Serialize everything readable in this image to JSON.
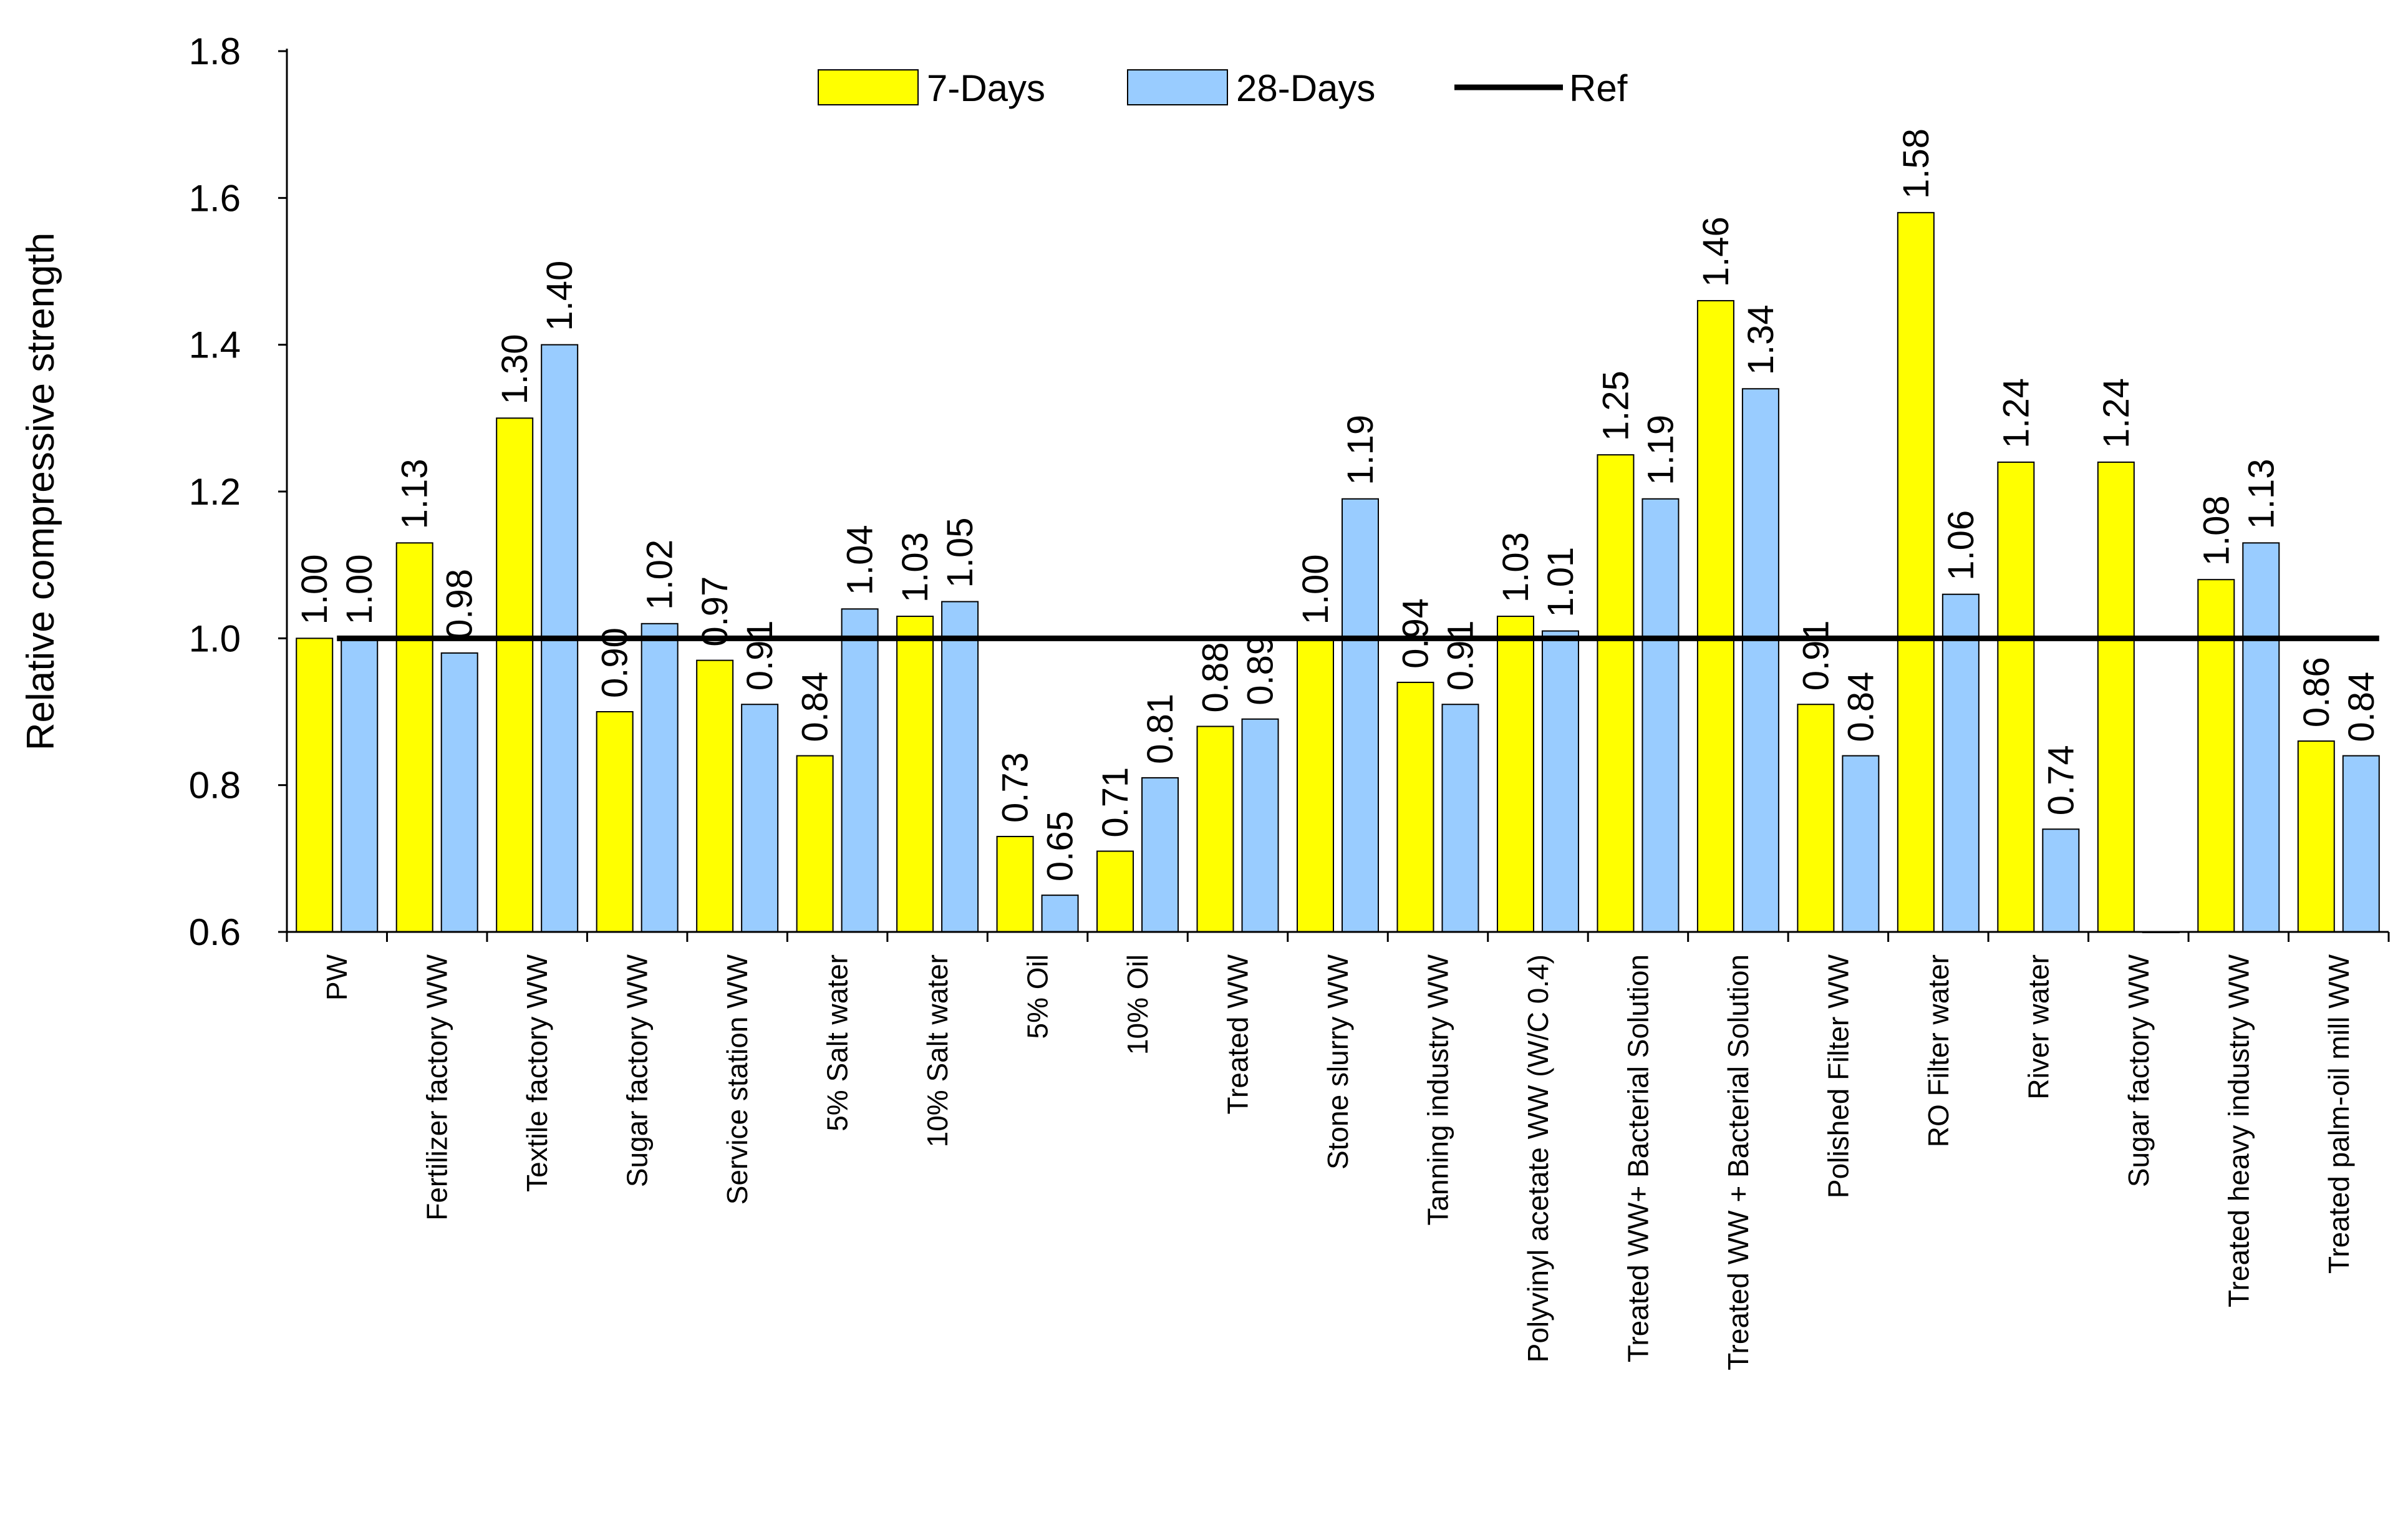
{
  "chart_data": {
    "type": "bar",
    "title": "",
    "xlabel": "",
    "ylabel": "Relative compressive strength",
    "ylim": [
      0.6,
      1.8
    ],
    "yticks": [
      "0.6",
      "0.8",
      "1.0",
      "1.2",
      "1.4",
      "1.6",
      "1.8"
    ],
    "grid": false,
    "legend_position": "top-center",
    "categories": [
      "PW",
      "Fertilizer factory WW",
      "Textile factory WW",
      "Sugar factory WW",
      "Service station WW",
      "5% Salt water",
      "10% Salt water",
      "5% Oil",
      "10% Oil",
      "Treated WW",
      "Stone slurry WW",
      "Tanning industry WW",
      "Polyvinyl acetate WW (W/C 0.4)",
      "Treated WW+ Bacterial Solution",
      "Treated WW + Bacterial Solution",
      "Polished Filter WW",
      "RO Filter water",
      "River water",
      "Sugar factory WW",
      "Treated heavy industry WW",
      "Treated palm-oil mill WW"
    ],
    "series": [
      {
        "name": "7-Days",
        "color": "#FFFF00",
        "values": [
          1.0,
          1.13,
          1.3,
          0.9,
          0.97,
          0.84,
          1.03,
          0.73,
          0.71,
          0.88,
          1.0,
          0.94,
          1.03,
          1.25,
          1.46,
          0.91,
          1.58,
          1.24,
          1.24,
          1.08,
          0.86
        ],
        "labels": [
          "1.00",
          "1.13",
          "1.30",
          "0.90",
          "0.97",
          "0.84",
          "1.03",
          "0.73",
          "0.71",
          "0.88",
          "1.00",
          "0.94",
          "1.03",
          "1.25",
          "1.46",
          "0.91",
          "1.58",
          "1.24",
          "1.24",
          "1.08",
          "0.86"
        ]
      },
      {
        "name": "28-Days",
        "color": "#99CCFF",
        "values": [
          1.0,
          0.98,
          1.4,
          1.02,
          0.91,
          1.04,
          1.05,
          0.65,
          0.81,
          0.89,
          1.19,
          0.91,
          1.01,
          1.19,
          1.34,
          0.84,
          1.06,
          0.74,
          0.6,
          1.13,
          0.84
        ],
        "labels": [
          "1.00",
          "0.98",
          "1.40",
          "1.02",
          "0.91",
          "1.04",
          "1.05",
          "0.65",
          "0.81",
          "0.89",
          "1.19",
          "0.91",
          "1.01",
          "1.19",
          "1.34",
          "0.84",
          "1.06",
          "0.74",
          null,
          "1.13",
          "0.84"
        ]
      }
    ],
    "reference": {
      "name": "Ref",
      "value": 1.0,
      "color": "#000000"
    }
  }
}
